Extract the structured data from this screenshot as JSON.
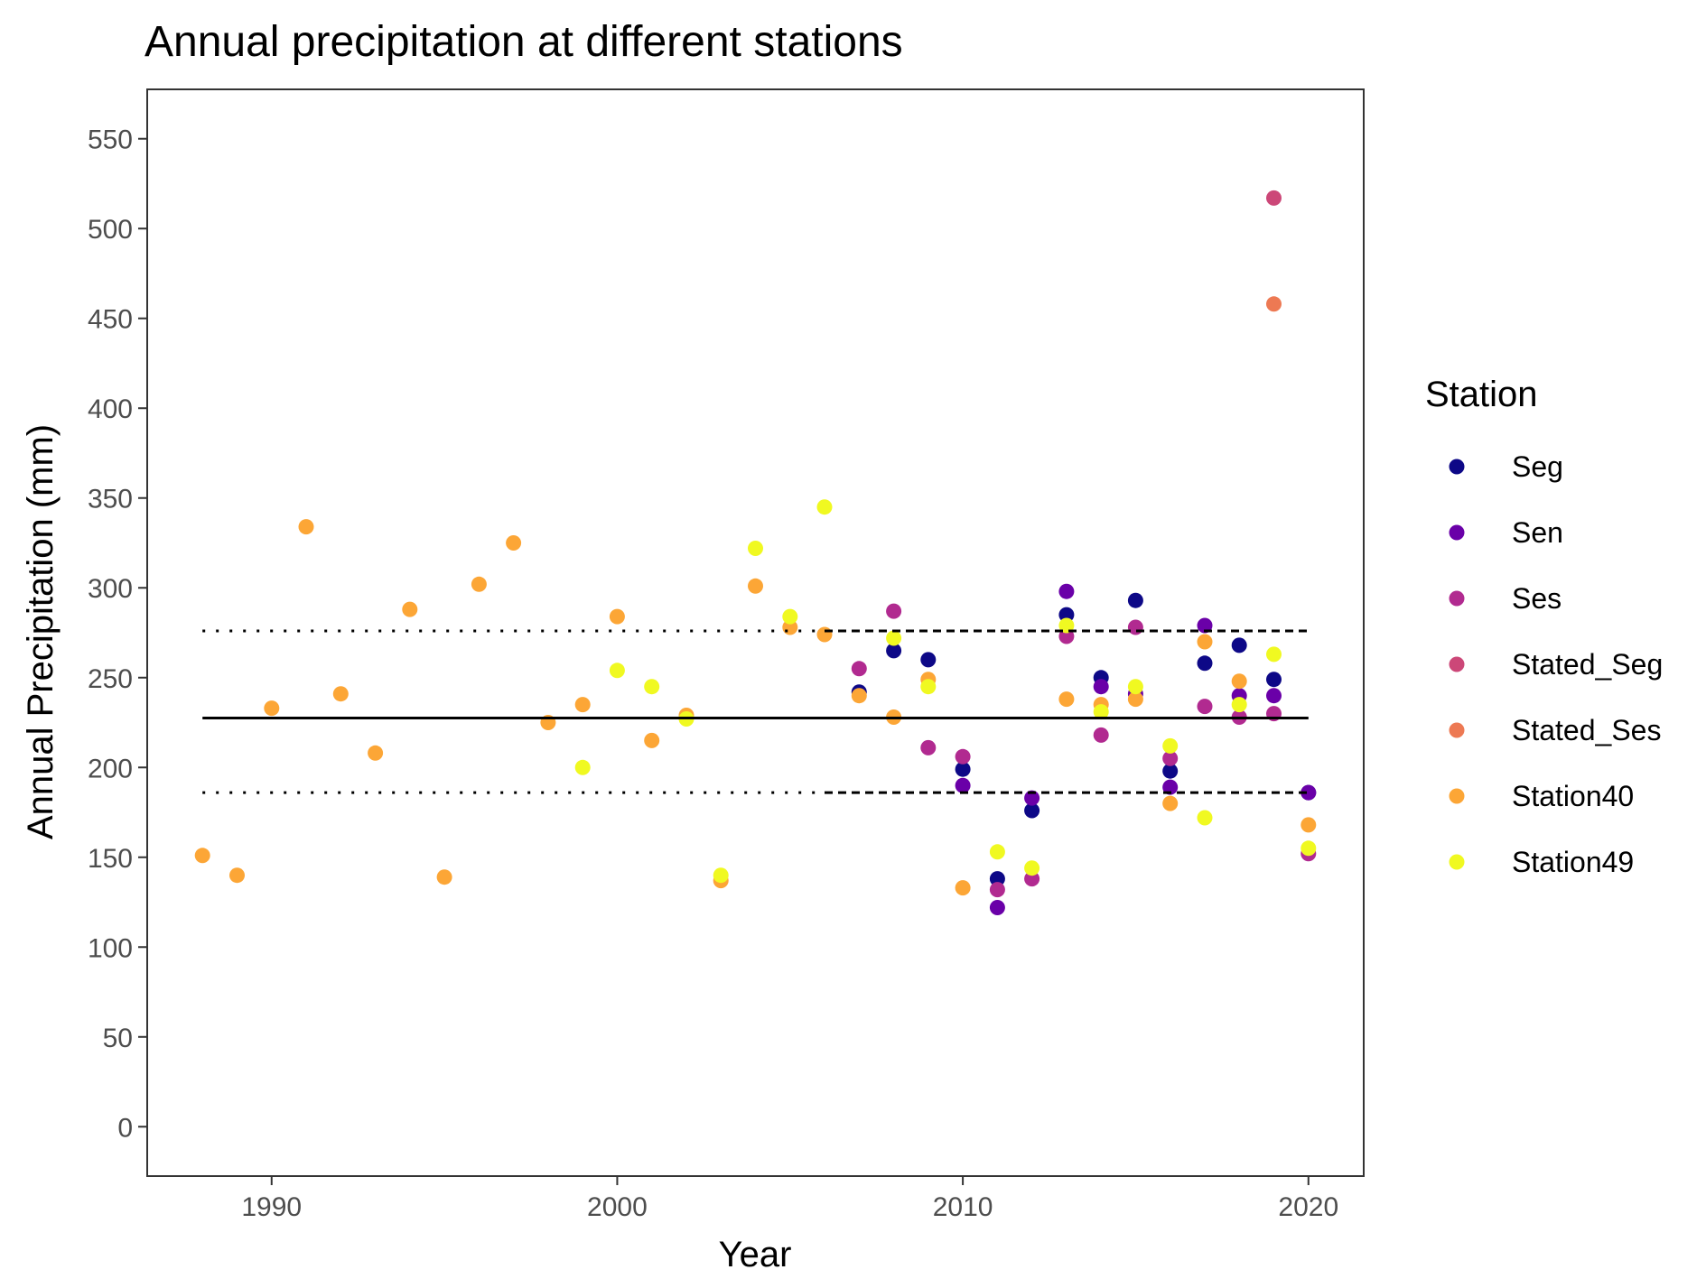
{
  "chart_data": {
    "type": "scatter",
    "title": "Annual precipitation at different stations",
    "xlabel": "Year",
    "ylabel": "Annual Precipitation (mm)",
    "xlim": [
      1986.4,
      2021.6
    ],
    "ylim": [
      -27.5,
      577.5
    ],
    "xticks": [
      1990,
      2000,
      2010,
      2020
    ],
    "yticks": [
      0,
      50,
      100,
      150,
      200,
      250,
      300,
      350,
      400,
      450,
      500,
      550
    ],
    "grid": false,
    "legend": {
      "title": "Station",
      "position": "right"
    },
    "reference_lines": [
      {
        "style": "solid",
        "x": [
          1988,
          2020
        ],
        "y": 227.5
      },
      {
        "style": "dotted",
        "x": [
          1988,
          2006
        ],
        "y": 276
      },
      {
        "style": "dashed",
        "x": [
          2006,
          2020
        ],
        "y": 276
      },
      {
        "style": "dotted",
        "x": [
          1988,
          2006
        ],
        "y": 186
      },
      {
        "style": "dashed",
        "x": [
          2006,
          2020
        ],
        "y": 186
      }
    ],
    "series": [
      {
        "name": "Seg",
        "color": "#0d0887",
        "points": [
          [
            2007,
            242
          ],
          [
            2008,
            265
          ],
          [
            2009,
            260
          ],
          [
            2010,
            199
          ],
          [
            2011,
            138
          ],
          [
            2012,
            176
          ],
          [
            2013,
            285
          ],
          [
            2014,
            250
          ],
          [
            2015,
            293
          ],
          [
            2016,
            198
          ],
          [
            2017,
            258
          ],
          [
            2018,
            268
          ],
          [
            2019,
            249
          ],
          [
            2020,
            186
          ]
        ]
      },
      {
        "name": "Sen",
        "color": "#6a00a8",
        "points": [
          [
            2010,
            190
          ],
          [
            2011,
            122
          ],
          [
            2012,
            183
          ],
          [
            2013,
            298
          ],
          [
            2014,
            245
          ],
          [
            2015,
            241
          ],
          [
            2016,
            189
          ],
          [
            2017,
            279
          ],
          [
            2018,
            240
          ],
          [
            2019,
            240
          ],
          [
            2020,
            186
          ]
        ]
      },
      {
        "name": "Ses",
        "color": "#b12a90",
        "points": [
          [
            2007,
            255
          ],
          [
            2008,
            287
          ],
          [
            2009,
            211
          ],
          [
            2010,
            206
          ],
          [
            2011,
            132
          ],
          [
            2012,
            138
          ],
          [
            2013,
            273
          ],
          [
            2014,
            218
          ],
          [
            2015,
            278
          ],
          [
            2016,
            205
          ],
          [
            2017,
            234
          ],
          [
            2018,
            228
          ],
          [
            2019,
            230
          ],
          [
            2020,
            152
          ]
        ]
      },
      {
        "name": "Stated_Seg",
        "color": "#cc4778",
        "points": [
          [
            2019,
            517
          ]
        ]
      },
      {
        "name": "Stated_Ses",
        "color": "#ed7953",
        "points": [
          [
            2019,
            458
          ]
        ]
      },
      {
        "name": "Station40",
        "color": "#fca636",
        "points": [
          [
            1988,
            151
          ],
          [
            1989,
            140
          ],
          [
            1990,
            233
          ],
          [
            1991,
            334
          ],
          [
            1992,
            241
          ],
          [
            1993,
            208
          ],
          [
            1994,
            288
          ],
          [
            1995,
            139
          ],
          [
            1996,
            302
          ],
          [
            1997,
            325
          ],
          [
            1998,
            225
          ],
          [
            1999,
            235
          ],
          [
            2000,
            284
          ],
          [
            2001,
            215
          ],
          [
            2002,
            229
          ],
          [
            2003,
            137
          ],
          [
            2004,
            301
          ],
          [
            2005,
            278
          ],
          [
            2006,
            274
          ],
          [
            2007,
            240
          ],
          [
            2008,
            228
          ],
          [
            2009,
            249
          ],
          [
            2010,
            133
          ],
          [
            2013,
            238
          ],
          [
            2014,
            235
          ],
          [
            2015,
            238
          ],
          [
            2016,
            180
          ],
          [
            2017,
            270
          ],
          [
            2018,
            248
          ],
          [
            2020,
            168
          ]
        ]
      },
      {
        "name": "Station49",
        "color": "#f0f921",
        "points": [
          [
            1999,
            200
          ],
          [
            2000,
            254
          ],
          [
            2001,
            245
          ],
          [
            2002,
            227
          ],
          [
            2003,
            140
          ],
          [
            2004,
            322
          ],
          [
            2005,
            284
          ],
          [
            2006,
            345
          ],
          [
            2008,
            272
          ],
          [
            2009,
            245
          ],
          [
            2011,
            153
          ],
          [
            2012,
            144
          ],
          [
            2013,
            279
          ],
          [
            2014,
            231
          ],
          [
            2015,
            245
          ],
          [
            2016,
            212
          ],
          [
            2017,
            172
          ],
          [
            2018,
            235
          ],
          [
            2019,
            263
          ],
          [
            2020,
            155
          ]
        ]
      }
    ]
  }
}
